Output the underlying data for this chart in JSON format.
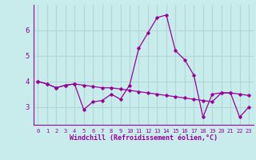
{
  "xlabel": "Windchill (Refroidissement éolien,°C)",
  "background_color": "#c8ecec",
  "grid_color": "#b0d8d8",
  "line_color": "#990099",
  "x": [
    0,
    1,
    2,
    3,
    4,
    5,
    6,
    7,
    8,
    9,
    10,
    11,
    12,
    13,
    14,
    15,
    16,
    17,
    18,
    19,
    20,
    21,
    22,
    23
  ],
  "y_line1": [
    4.0,
    3.9,
    3.75,
    3.85,
    3.9,
    2.9,
    3.2,
    3.25,
    3.5,
    3.3,
    3.85,
    5.3,
    5.9,
    6.5,
    6.6,
    5.2,
    4.85,
    4.25,
    2.6,
    3.5,
    3.55,
    3.55,
    2.6,
    3.0
  ],
  "y_line2": [
    4.0,
    3.9,
    3.75,
    3.85,
    3.9,
    3.85,
    3.8,
    3.75,
    3.75,
    3.7,
    3.65,
    3.6,
    3.55,
    3.5,
    3.45,
    3.4,
    3.35,
    3.3,
    3.25,
    3.2,
    3.55,
    3.55,
    3.5,
    3.45
  ],
  "ylim": [
    2.3,
    7.0
  ],
  "yticks": [
    3,
    4,
    5,
    6
  ],
  "xlim": [
    -0.5,
    23.5
  ]
}
